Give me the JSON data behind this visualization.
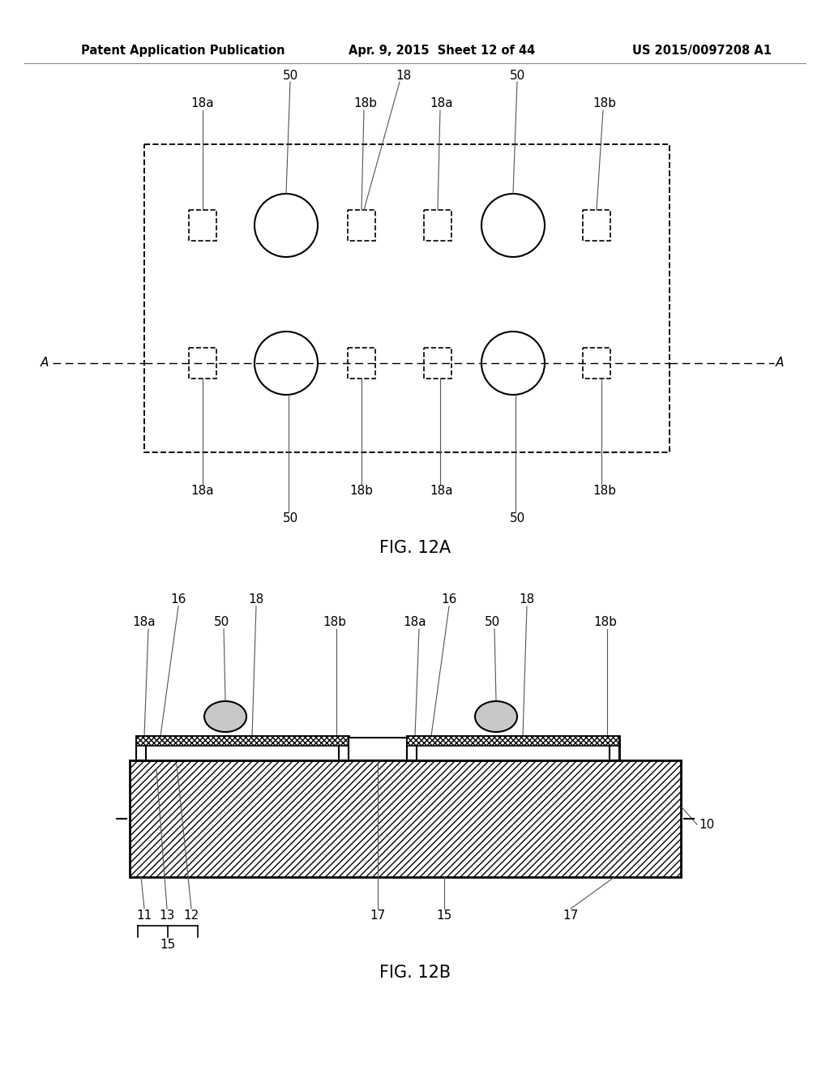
{
  "bg_color": "#ffffff",
  "header_left": "Patent Application Publication",
  "header_mid": "Apr. 9, 2015  Sheet 12 of 44",
  "header_right": "US 2015/0097208 A1",
  "fig12a_label": "FIG. 12A",
  "fig12b_label": "FIG. 12B",
  "line_color": "#000000"
}
